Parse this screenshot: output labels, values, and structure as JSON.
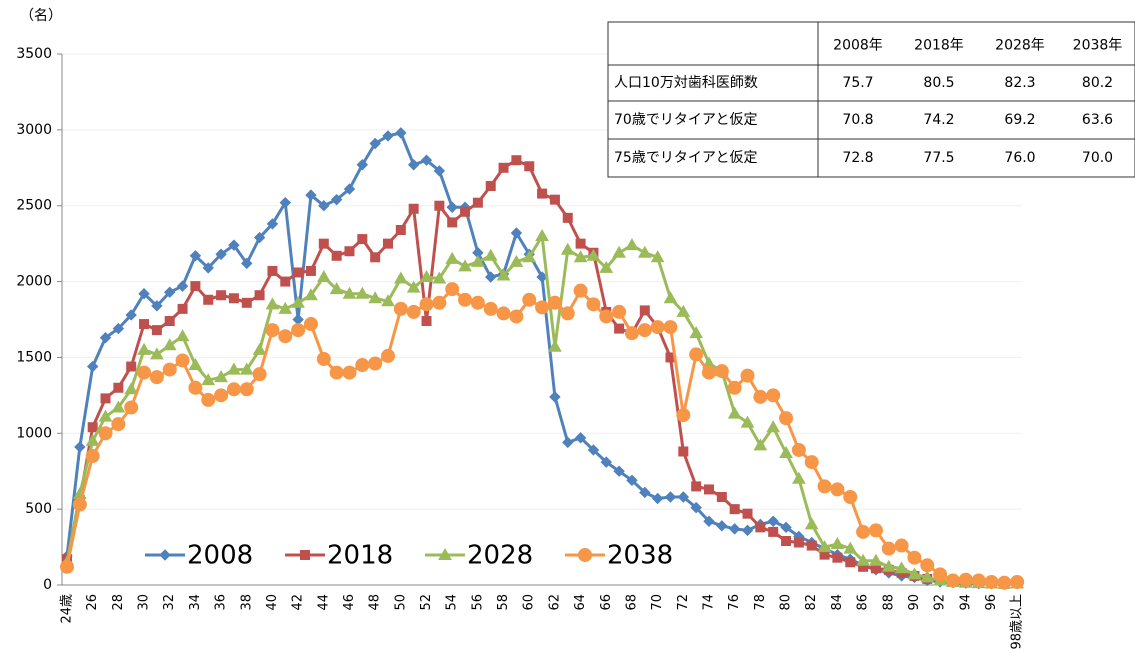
{
  "chart_data": {
    "type": "line",
    "y_label": "（名）",
    "categories": [
      "24歳",
      null,
      "26",
      null,
      "28",
      null,
      "30",
      null,
      "32",
      null,
      "34",
      null,
      "36",
      null,
      "38",
      null,
      "40",
      null,
      "42",
      null,
      "44",
      null,
      "46",
      null,
      "48",
      null,
      "50",
      null,
      "52",
      null,
      "54",
      null,
      "56",
      null,
      "58",
      null,
      "60",
      null,
      "62",
      null,
      "64",
      null,
      "66",
      null,
      "68",
      null,
      "70",
      null,
      "72",
      null,
      "74",
      null,
      "76",
      null,
      "78",
      null,
      "80",
      null,
      "82",
      null,
      "84",
      null,
      "86",
      null,
      "88",
      null,
      "90",
      null,
      "92",
      null,
      "94",
      null,
      "96",
      null,
      "98歳以上"
    ],
    "ylim": [
      0,
      3500
    ],
    "yticks": [
      0,
      500,
      1000,
      1500,
      2000,
      2500,
      3000,
      3500
    ],
    "grid": true,
    "series": [
      {
        "name": "2008",
        "color": "#4f81bd",
        "marker": "diamond",
        "values": [
          190,
          910,
          1440,
          1630,
          1690,
          1780,
          1920,
          1840,
          1930,
          1970,
          2170,
          2090,
          2180,
          2240,
          2120,
          2290,
          2380,
          2520,
          1750,
          2570,
          2500,
          2540,
          2610,
          2770,
          2910,
          2960,
          2980,
          2770,
          2800,
          2730,
          2490,
          2490,
          2190,
          2030,
          2050,
          2320,
          2180,
          2030,
          1240,
          940,
          970,
          890,
          810,
          750,
          690,
          610,
          570,
          580,
          580,
          510,
          420,
          390,
          370,
          360,
          400,
          420,
          380,
          320,
          280,
          240,
          200,
          170,
          130,
          100,
          80,
          60,
          50,
          30,
          20,
          15,
          12,
          10,
          8,
          5,
          10
        ]
      },
      {
        "name": "2018",
        "color": "#c0504d",
        "marker": "square",
        "values": [
          170,
          560,
          1040,
          1230,
          1300,
          1440,
          1720,
          1680,
          1740,
          1820,
          1970,
          1880,
          1910,
          1890,
          1860,
          1910,
          2070,
          2000,
          2060,
          2070,
          2250,
          2170,
          2200,
          2280,
          2160,
          2250,
          2340,
          2480,
          1740,
          2500,
          2390,
          2460,
          2520,
          2630,
          2750,
          2800,
          2760,
          2580,
          2540,
          2420,
          2250,
          2190,
          1800,
          1690,
          1660,
          1810,
          1700,
          1500,
          880,
          650,
          630,
          580,
          500,
          470,
          380,
          350,
          290,
          280,
          260,
          200,
          180,
          150,
          120,
          110,
          100,
          80,
          60,
          40,
          30,
          25,
          20,
          15,
          10,
          8,
          15
        ]
      },
      {
        "name": "2028",
        "color": "#9bbb59",
        "marker": "triangle",
        "values": [
          150,
          600,
          950,
          1110,
          1170,
          1290,
          1550,
          1520,
          1580,
          1640,
          1450,
          1350,
          1370,
          1420,
          1420,
          1550,
          1850,
          1820,
          1860,
          1910,
          2030,
          1950,
          1920,
          1920,
          1890,
          1870,
          2020,
          1960,
          2030,
          2020,
          2150,
          2100,
          2130,
          2170,
          2040,
          2130,
          2160,
          2300,
          1570,
          2210,
          2160,
          2170,
          2090,
          2190,
          2240,
          2190,
          2160,
          1890,
          1800,
          1660,
          1460,
          1410,
          1130,
          1070,
          920,
          1040,
          870,
          700,
          400,
          250,
          270,
          240,
          160,
          160,
          120,
          110,
          70,
          50,
          30,
          20,
          15,
          12,
          10,
          8,
          10
        ]
      },
      {
        "name": "2038",
        "color": "#f79646",
        "marker": "circle",
        "values": [
          120,
          530,
          850,
          1000,
          1060,
          1170,
          1400,
          1370,
          1420,
          1480,
          1300,
          1220,
          1250,
          1290,
          1290,
          1390,
          1680,
          1640,
          1680,
          1720,
          1490,
          1400,
          1400,
          1450,
          1460,
          1510,
          1820,
          1800,
          1850,
          1860,
          1950,
          1880,
          1860,
          1820,
          1790,
          1770,
          1880,
          1830,
          1860,
          1790,
          1940,
          1850,
          1770,
          1800,
          1660,
          1680,
          1700,
          1700,
          1120,
          1520,
          1400,
          1410,
          1300,
          1380,
          1240,
          1250,
          1100,
          890,
          810,
          650,
          630,
          580,
          350,
          360,
          240,
          260,
          180,
          130,
          70,
          30,
          35,
          30,
          20,
          15,
          20
        ]
      }
    ]
  },
  "table": {
    "header": [
      "2008年",
      "2018年",
      "2028年",
      "2038年"
    ],
    "rows": [
      [
        "人口10万対歯科医師数",
        "75.7",
        "80.5",
        "82.3",
        "80.2"
      ],
      [
        "70歳でリタイアと仮定",
        "70.8",
        "74.2",
        "69.2",
        "63.6"
      ],
      [
        "75歳でリタイアと仮定",
        "72.8",
        "77.5",
        "76.0",
        "70.0"
      ]
    ]
  }
}
